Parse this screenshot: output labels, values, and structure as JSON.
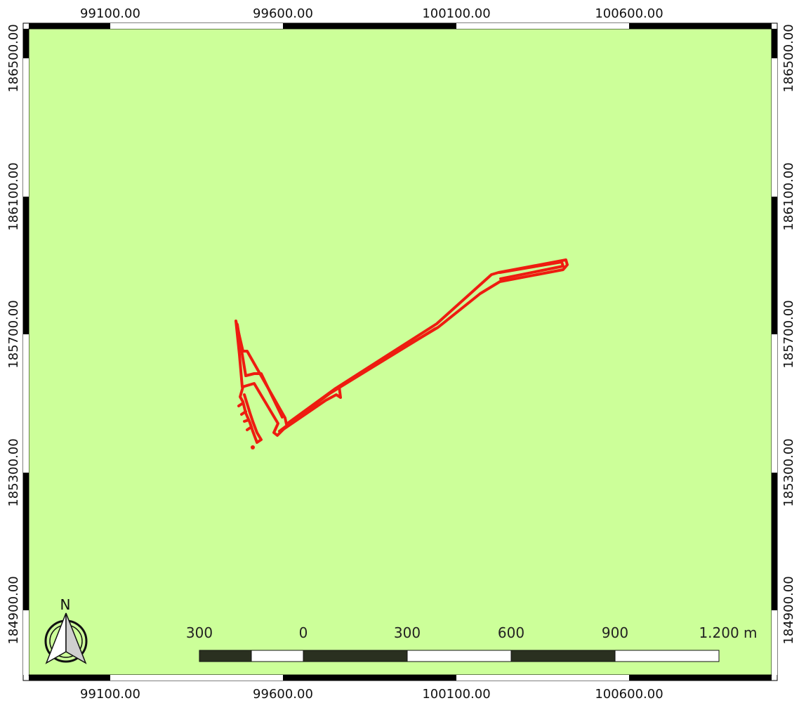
{
  "map": {
    "background_color": "#ccff99",
    "feature_color": "#ee1c10",
    "frame_colors": [
      "#000000",
      "#ffffff"
    ]
  },
  "grid": {
    "x_labels": [
      "99100.00",
      "99600.00",
      "100100.00",
      "100600.00"
    ],
    "y_labels": [
      "186500.00",
      "186100.00",
      "185700.00",
      "185300.00",
      "184900.00"
    ]
  },
  "north_arrow": {
    "label": "N"
  },
  "scale_bar": {
    "labels": [
      "300",
      "0",
      "300",
      "600",
      "900",
      "1.200 m"
    ]
  }
}
